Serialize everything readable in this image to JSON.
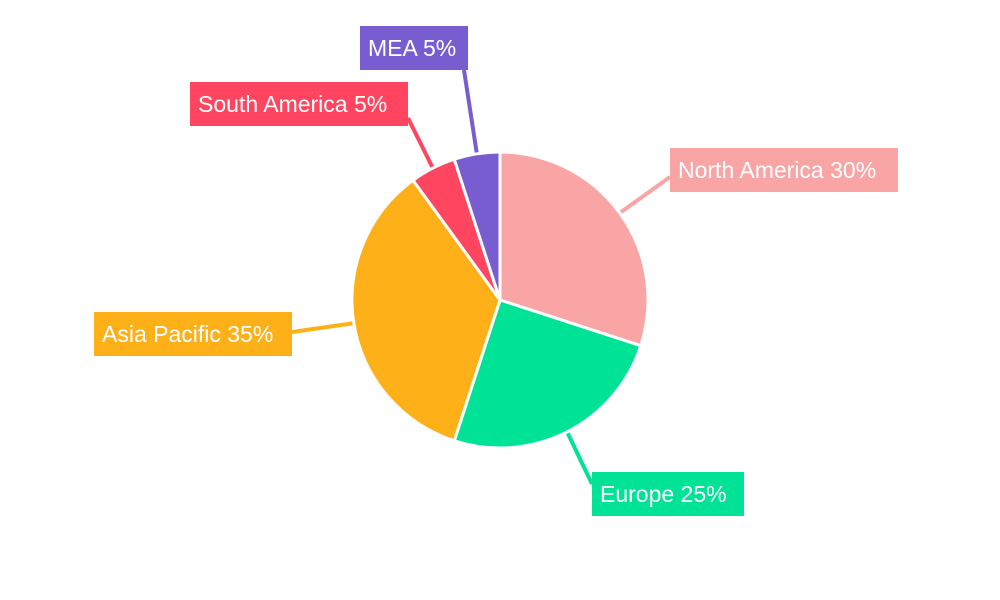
{
  "chart_data": {
    "type": "pie",
    "title": "",
    "start_angle": "12 o'clock, clockwise",
    "slices": [
      {
        "label": "North America",
        "value": 30,
        "display": "North America 30%",
        "color": "#F9A5A5"
      },
      {
        "label": "Europe",
        "value": 25,
        "display": "Europe 25%",
        "color": "#00E396"
      },
      {
        "label": "Asia Pacific",
        "value": 35,
        "display": "Asia Pacific 35%",
        "color": "#FEB019"
      },
      {
        "label": "South America",
        "value": 5,
        "display": "South America 5%",
        "color": "#FF4560"
      },
      {
        "label": "MEA",
        "value": 5,
        "display": "MEA 5%",
        "color": "#775DD0"
      }
    ],
    "legend": "none"
  }
}
